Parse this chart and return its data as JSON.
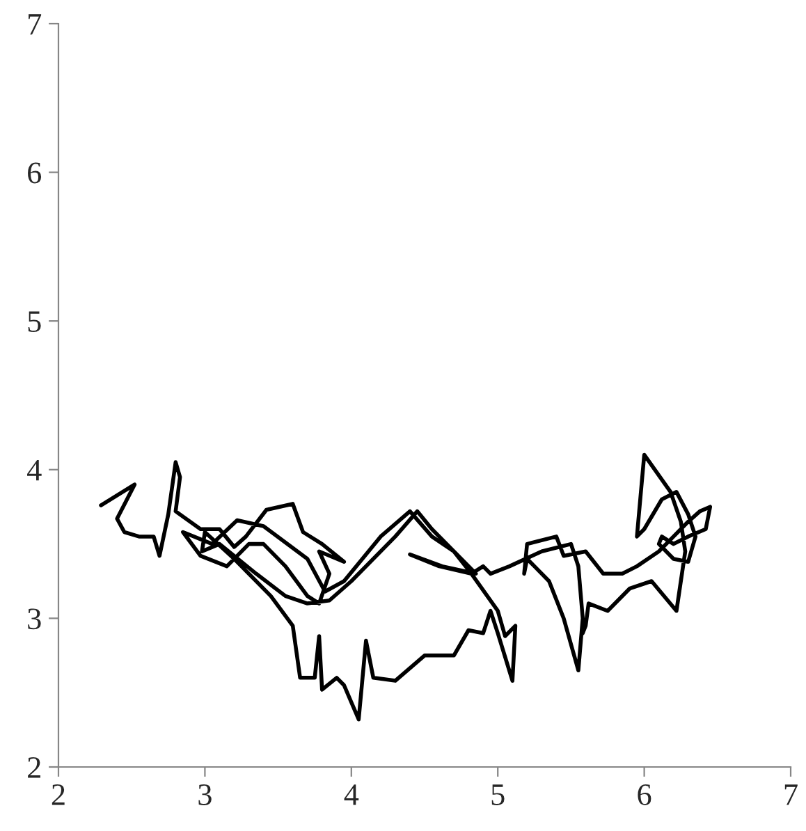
{
  "chart_data": {
    "type": "line",
    "xlim": [
      2,
      7
    ],
    "ylim": [
      2,
      7
    ],
    "xticks": [
      2,
      3,
      4,
      5,
      6,
      7
    ],
    "yticks": [
      2,
      3,
      4,
      5,
      6,
      7
    ],
    "grid": false,
    "marker": "none",
    "line_style": "solid",
    "series": [
      {
        "color": "#000000",
        "x": [
          2.29,
          2.52,
          2.4,
          2.45,
          2.55,
          2.65,
          2.69,
          2.75,
          2.8,
          2.83,
          2.8,
          2.97,
          3.1,
          3.2,
          3.28,
          3.42,
          3.6,
          3.67,
          3.8,
          3.95,
          3.78,
          3.85,
          3.78,
          3.7,
          3.55,
          3.4,
          3.3,
          3.15,
          2.97,
          2.85,
          3.05,
          3.22,
          3.4,
          3.7,
          3.82,
          3.95,
          4.2,
          4.4,
          4.55,
          4.7,
          4.85,
          4.62,
          4.4,
          4.6,
          4.82,
          5.0,
          5.05,
          5.12,
          5.1,
          5.0,
          4.95,
          4.9,
          4.8,
          4.7,
          4.5,
          4.3,
          4.15,
          4.1,
          4.05,
          3.95,
          3.9,
          3.8,
          3.78,
          3.75,
          3.65,
          3.6,
          3.45,
          3.2,
          3.0,
          2.98,
          3.1,
          3.35,
          3.55,
          3.7,
          3.85,
          4.0,
          4.3,
          4.45,
          4.55,
          4.7,
          4.82,
          4.9,
          4.95,
          5.08,
          5.3,
          5.5,
          5.55,
          5.58,
          5.55,
          5.45,
          5.35,
          5.25,
          5.2,
          5.18,
          5.2,
          5.4,
          5.45,
          5.6,
          5.72,
          5.85,
          5.95,
          6.1,
          6.2,
          6.3,
          6.38,
          6.45,
          6.42,
          6.3,
          6.2,
          6.12,
          6.1,
          6.2,
          6.3,
          6.35,
          6.3,
          6.22,
          6.12,
          6.0,
          5.95,
          6.0,
          6.18,
          6.25,
          6.28,
          6.22,
          6.05,
          5.9,
          5.75,
          5.62,
          5.6,
          5.58
        ],
        "values": [
          3.76,
          3.9,
          3.67,
          3.58,
          3.55,
          3.55,
          3.42,
          3.7,
          4.05,
          3.95,
          3.72,
          3.6,
          3.6,
          3.48,
          3.55,
          3.73,
          3.77,
          3.58,
          3.5,
          3.38,
          3.45,
          3.3,
          3.1,
          3.15,
          3.35,
          3.5,
          3.5,
          3.35,
          3.42,
          3.58,
          3.5,
          3.66,
          3.62,
          3.4,
          3.18,
          3.25,
          3.55,
          3.72,
          3.55,
          3.45,
          3.3,
          3.35,
          3.43,
          3.35,
          3.3,
          3.05,
          2.88,
          2.95,
          2.58,
          2.9,
          3.05,
          2.9,
          2.92,
          2.75,
          2.75,
          2.58,
          2.6,
          2.85,
          2.32,
          2.55,
          2.6,
          2.52,
          2.88,
          2.6,
          2.6,
          2.95,
          3.15,
          3.4,
          3.58,
          3.45,
          3.5,
          3.3,
          3.15,
          3.1,
          3.12,
          3.25,
          3.55,
          3.72,
          3.6,
          3.45,
          3.3,
          3.35,
          3.3,
          3.35,
          3.45,
          3.5,
          3.35,
          3.0,
          2.65,
          3.0,
          3.25,
          3.35,
          3.4,
          3.3,
          3.5,
          3.55,
          3.42,
          3.45,
          3.3,
          3.3,
          3.35,
          3.45,
          3.55,
          3.65,
          3.72,
          3.75,
          3.6,
          3.55,
          3.5,
          3.55,
          3.5,
          3.4,
          3.38,
          3.55,
          3.7,
          3.85,
          3.8,
          3.6,
          3.55,
          4.1,
          3.85,
          3.65,
          3.45,
          3.05,
          3.25,
          3.2,
          3.05,
          3.1,
          2.95,
          2.9
        ]
      }
    ]
  }
}
